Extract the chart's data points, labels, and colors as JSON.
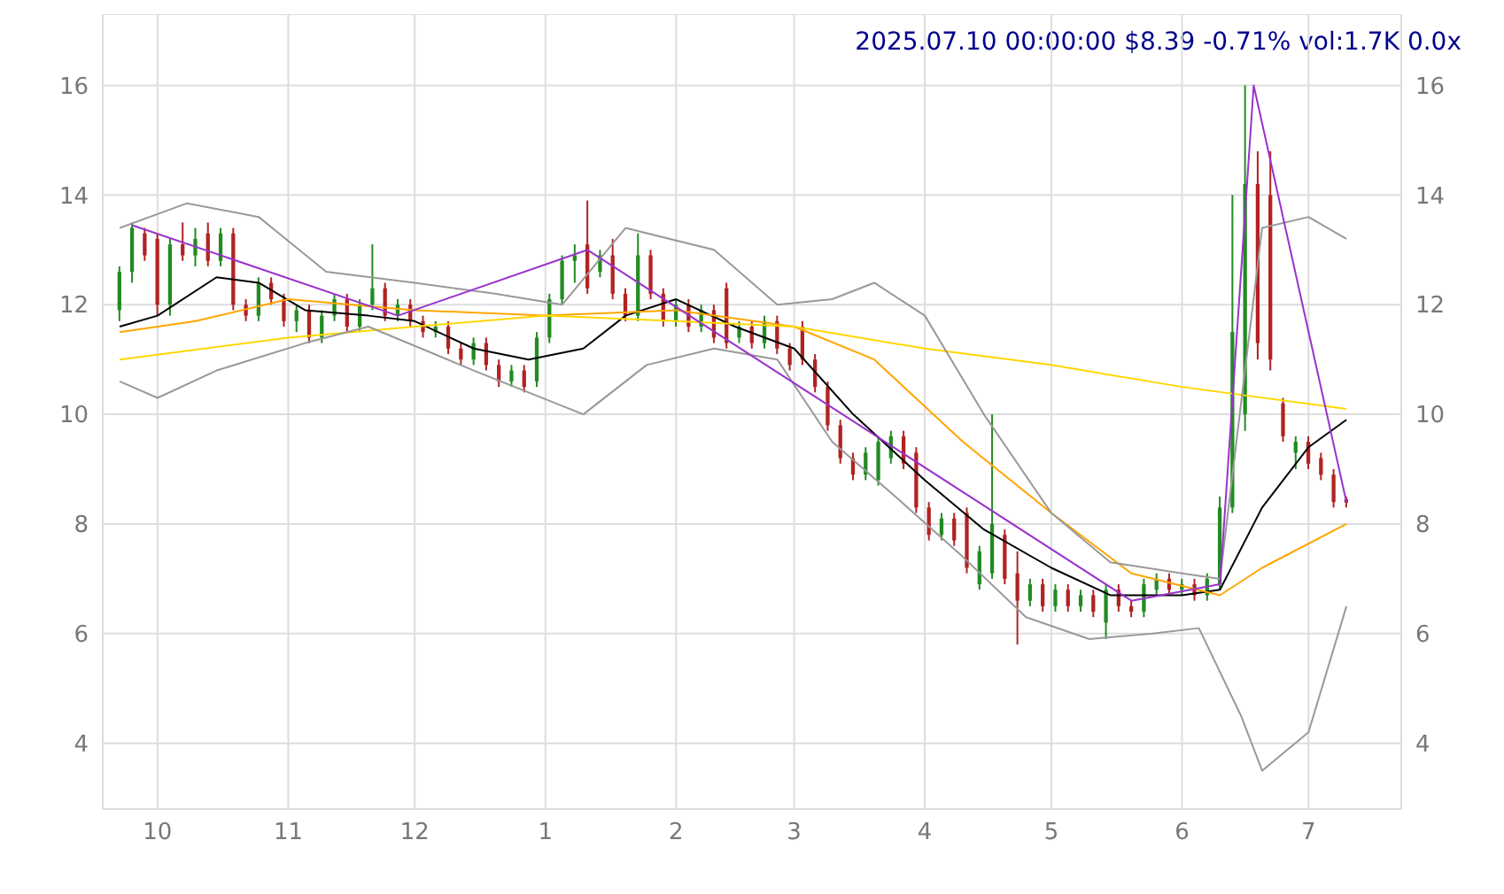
{
  "chart_data": {
    "type": "candlestick",
    "title": "2025.07.10 00:00:00 $8.39 -0.71% vol:1.7K 0.0x",
    "x": [
      "2024-09-22",
      "2024-09-25",
      "2024-09-28",
      "2024-10-01",
      "2024-10-04",
      "2024-10-07",
      "2024-10-10",
      "2024-10-13",
      "2024-10-16",
      "2024-10-19",
      "2024-10-22",
      "2024-10-25",
      "2024-10-28",
      "2024-10-31",
      "2024-11-03",
      "2024-11-06",
      "2024-11-09",
      "2024-11-12",
      "2024-11-15",
      "2024-11-18",
      "2024-11-21",
      "2024-11-24",
      "2024-11-27",
      "2024-11-30",
      "2024-12-03",
      "2024-12-06",
      "2024-12-09",
      "2024-12-12",
      "2024-12-15",
      "2024-12-18",
      "2024-12-21",
      "2024-12-24",
      "2024-12-27",
      "2024-12-30",
      "2025-01-02",
      "2025-01-05",
      "2025-01-08",
      "2025-01-11",
      "2025-01-14",
      "2025-01-17",
      "2025-01-20",
      "2025-01-23",
      "2025-01-26",
      "2025-01-29",
      "2025-02-01",
      "2025-02-04",
      "2025-02-07",
      "2025-02-10",
      "2025-02-13",
      "2025-02-16",
      "2025-02-19",
      "2025-02-22",
      "2025-02-25",
      "2025-02-28",
      "2025-03-03",
      "2025-03-06",
      "2025-03-09",
      "2025-03-12",
      "2025-03-15",
      "2025-03-18",
      "2025-03-21",
      "2025-03-24",
      "2025-03-27",
      "2025-03-30",
      "2025-04-02",
      "2025-04-05",
      "2025-04-08",
      "2025-04-11",
      "2025-04-14",
      "2025-04-17",
      "2025-04-20",
      "2025-04-23",
      "2025-04-26",
      "2025-04-29",
      "2025-05-02",
      "2025-05-05",
      "2025-05-08",
      "2025-05-11",
      "2025-05-14",
      "2025-05-17",
      "2025-05-20",
      "2025-05-23",
      "2025-05-26",
      "2025-05-29",
      "2025-06-01",
      "2025-06-04",
      "2025-06-07",
      "2025-06-10",
      "2025-06-13",
      "2025-06-16",
      "2025-06-19",
      "2025-06-22",
      "2025-06-25",
      "2025-06-28",
      "2025-07-01",
      "2025-07-04",
      "2025-07-07",
      "2025-07-10"
    ],
    "ohlc": [
      [
        11.9,
        12.7,
        11.7,
        12.6
      ],
      [
        12.6,
        13.5,
        12.4,
        13.4
      ],
      [
        13.3,
        13.4,
        12.8,
        12.9
      ],
      [
        13.2,
        13.3,
        11.8,
        12.0
      ],
      [
        12.0,
        13.2,
        11.8,
        13.1
      ],
      [
        13.1,
        13.5,
        12.8,
        12.9
      ],
      [
        12.9,
        13.4,
        12.7,
        13.2
      ],
      [
        13.3,
        13.5,
        12.7,
        12.8
      ],
      [
        12.8,
        13.4,
        12.7,
        13.3
      ],
      [
        13.3,
        13.4,
        11.9,
        12.0
      ],
      [
        12.0,
        12.1,
        11.7,
        11.8
      ],
      [
        11.8,
        12.5,
        11.7,
        12.4
      ],
      [
        12.4,
        12.5,
        12.0,
        12.1
      ],
      [
        12.1,
        12.2,
        11.6,
        11.7
      ],
      [
        11.7,
        12.0,
        11.5,
        11.9
      ],
      [
        11.9,
        12.0,
        11.3,
        11.4
      ],
      [
        11.4,
        11.9,
        11.3,
        11.8
      ],
      [
        11.8,
        12.2,
        11.7,
        12.1
      ],
      [
        12.1,
        12.2,
        11.5,
        11.6
      ],
      [
        11.6,
        12.1,
        11.5,
        12.0
      ],
      [
        12.0,
        13.1,
        11.9,
        12.3
      ],
      [
        12.3,
        12.4,
        11.7,
        11.8
      ],
      [
        11.8,
        12.1,
        11.7,
        12.0
      ],
      [
        12.0,
        12.1,
        11.6,
        11.7
      ],
      [
        11.7,
        11.8,
        11.4,
        11.5
      ],
      [
        11.5,
        11.7,
        11.4,
        11.6
      ],
      [
        11.6,
        11.7,
        11.1,
        11.2
      ],
      [
        11.2,
        11.3,
        10.9,
        11.0
      ],
      [
        11.0,
        11.4,
        10.9,
        11.3
      ],
      [
        11.3,
        11.4,
        10.8,
        10.9
      ],
      [
        10.9,
        11.0,
        10.5,
        10.6
      ],
      [
        10.6,
        10.9,
        10.5,
        10.8
      ],
      [
        10.8,
        10.9,
        10.4,
        10.5
      ],
      [
        10.6,
        11.5,
        10.5,
        11.4
      ],
      [
        11.4,
        12.2,
        11.3,
        12.1
      ],
      [
        12.1,
        12.9,
        12.0,
        12.8
      ],
      [
        12.8,
        13.1,
        12.4,
        12.9
      ],
      [
        13.1,
        13.9,
        12.2,
        12.3
      ],
      [
        12.6,
        13.0,
        12.5,
        12.9
      ],
      [
        12.9,
        13.2,
        12.1,
        12.2
      ],
      [
        12.2,
        12.3,
        11.7,
        11.8
      ],
      [
        11.8,
        13.3,
        11.7,
        12.9
      ],
      [
        12.9,
        13.0,
        12.1,
        12.2
      ],
      [
        12.2,
        12.3,
        11.6,
        11.7
      ],
      [
        11.7,
        12.1,
        11.6,
        12.0
      ],
      [
        12.0,
        12.1,
        11.5,
        11.6
      ],
      [
        11.6,
        12.0,
        11.5,
        11.9
      ],
      [
        11.9,
        12.0,
        11.3,
        11.4
      ],
      [
        12.3,
        12.4,
        11.2,
        11.3
      ],
      [
        11.4,
        11.7,
        11.3,
        11.6
      ],
      [
        11.6,
        11.7,
        11.2,
        11.3
      ],
      [
        11.3,
        11.8,
        11.2,
        11.7
      ],
      [
        11.7,
        11.8,
        11.1,
        11.2
      ],
      [
        11.2,
        11.3,
        10.8,
        10.9
      ],
      [
        11.6,
        11.7,
        10.9,
        11.0
      ],
      [
        11.0,
        11.1,
        10.4,
        10.5
      ],
      [
        10.5,
        10.6,
        9.7,
        9.8
      ],
      [
        9.8,
        9.9,
        9.1,
        9.2
      ],
      [
        9.2,
        9.3,
        8.8,
        8.9
      ],
      [
        8.9,
        9.4,
        8.8,
        9.3
      ],
      [
        8.8,
        9.6,
        8.7,
        9.5
      ],
      [
        9.2,
        9.7,
        9.1,
        9.6
      ],
      [
        9.6,
        9.7,
        9.0,
        9.1
      ],
      [
        9.3,
        9.4,
        8.2,
        8.3
      ],
      [
        8.3,
        8.4,
        7.7,
        7.8
      ],
      [
        7.8,
        8.2,
        7.7,
        8.1
      ],
      [
        8.1,
        8.2,
        7.6,
        7.7
      ],
      [
        8.2,
        8.3,
        7.1,
        7.2
      ],
      [
        6.9,
        7.6,
        6.8,
        7.5
      ],
      [
        7.1,
        10.0,
        7.0,
        8.0
      ],
      [
        7.8,
        7.9,
        6.9,
        7.0
      ],
      [
        7.1,
        7.5,
        5.8,
        6.6
      ],
      [
        6.6,
        7.0,
        6.5,
        6.9
      ],
      [
        6.9,
        7.0,
        6.4,
        6.5
      ],
      [
        6.5,
        6.9,
        6.4,
        6.8
      ],
      [
        6.8,
        6.9,
        6.4,
        6.5
      ],
      [
        6.5,
        6.8,
        6.4,
        6.7
      ],
      [
        6.7,
        6.8,
        6.3,
        6.4
      ],
      [
        6.2,
        6.9,
        5.9,
        6.8
      ],
      [
        6.8,
        6.9,
        6.4,
        6.5
      ],
      [
        6.5,
        6.6,
        6.3,
        6.4
      ],
      [
        6.4,
        7.0,
        6.3,
        6.9
      ],
      [
        6.8,
        7.1,
        6.7,
        7.0
      ],
      [
        7.0,
        7.1,
        6.7,
        6.8
      ],
      [
        6.8,
        7.0,
        6.7,
        6.9
      ],
      [
        6.9,
        7.0,
        6.6,
        6.7
      ],
      [
        6.7,
        7.1,
        6.6,
        7.0
      ],
      [
        6.9,
        8.5,
        6.8,
        8.3
      ],
      [
        8.3,
        14.0,
        8.2,
        11.5
      ],
      [
        10.0,
        16.0,
        9.7,
        14.2
      ],
      [
        14.2,
        14.8,
        11.0,
        11.3
      ],
      [
        14.0,
        14.8,
        10.8,
        11.0
      ],
      [
        10.2,
        10.3,
        9.5,
        9.6
      ],
      [
        9.3,
        9.6,
        9.0,
        9.5
      ],
      [
        9.5,
        9.6,
        9.0,
        9.1
      ],
      [
        9.2,
        9.3,
        8.8,
        8.9
      ],
      [
        8.9,
        9.0,
        8.3,
        8.4
      ],
      [
        8.45,
        8.5,
        8.3,
        8.39
      ]
    ],
    "series": [
      {
        "type": "line",
        "color": "#000000",
        "x": [
          "2024-09-22",
          "2024-10-01",
          "2024-10-15",
          "2024-10-25",
          "2024-11-05",
          "2024-11-20",
          "2024-12-01",
          "2024-12-15",
          "2024-12-28",
          "2025-01-10",
          "2025-01-20",
          "2025-02-01",
          "2025-02-15",
          "2025-03-01",
          "2025-03-15",
          "2025-04-01",
          "2025-04-15",
          "2025-05-01",
          "2025-05-15",
          "2025-06-01",
          "2025-06-10",
          "2025-06-20",
          "2025-07-01",
          "2025-07-10"
        ],
        "values": [
          11.6,
          11.8,
          12.5,
          12.4,
          11.9,
          11.8,
          11.7,
          11.2,
          11.0,
          11.2,
          11.8,
          12.1,
          11.6,
          11.2,
          10.0,
          8.8,
          7.9,
          7.2,
          6.7,
          6.7,
          6.8,
          8.3,
          9.4,
          9.9
        ]
      },
      {
        "type": "line",
        "color": "#ffa500",
        "x": [
          "2024-09-22",
          "2024-10-10",
          "2024-11-01",
          "2024-12-01",
          "2025-01-01",
          "2025-02-01",
          "2025-03-01",
          "2025-03-20",
          "2025-04-10",
          "2025-05-01",
          "2025-05-20",
          "2025-06-10",
          "2025-06-20",
          "2025-07-10"
        ],
        "values": [
          11.5,
          11.7,
          12.1,
          11.9,
          11.8,
          11.9,
          11.6,
          11.0,
          9.5,
          8.2,
          7.1,
          6.7,
          7.2,
          8.0
        ]
      },
      {
        "type": "line",
        "color": "#ffd700",
        "x": [
          "2024-09-22",
          "2024-11-01",
          "2024-12-01",
          "2025-01-01",
          "2025-02-01",
          "2025-03-01",
          "2025-04-01",
          "2025-05-01",
          "2025-06-01",
          "2025-07-10"
        ],
        "values": [
          11.0,
          11.4,
          11.6,
          11.8,
          11.7,
          11.6,
          11.2,
          10.9,
          10.5,
          10.1
        ]
      },
      {
        "type": "line",
        "color": "#999999",
        "x": [
          "2024-09-22",
          "2024-10-08",
          "2024-10-25",
          "2024-11-10",
          "2024-12-01",
          "2024-12-20",
          "2025-01-05",
          "2025-01-20",
          "2025-02-10",
          "2025-02-25",
          "2025-03-10",
          "2025-03-20",
          "2025-04-01",
          "2025-04-15",
          "2025-05-01",
          "2025-05-15",
          "2025-06-01",
          "2025-06-10",
          "2025-06-20",
          "2025-07-01",
          "2025-07-10"
        ],
        "values": [
          13.4,
          13.85,
          13.6,
          12.6,
          12.4,
          12.2,
          12.0,
          13.4,
          13.0,
          12.0,
          12.1,
          12.4,
          11.8,
          10.0,
          8.2,
          7.3,
          7.1,
          7.0,
          13.4,
          13.6,
          13.2
        ]
      },
      {
        "type": "line",
        "color": "#999999",
        "x": [
          "2024-09-22",
          "2024-10-01",
          "2024-10-15",
          "2024-11-05",
          "2024-11-20",
          "2024-12-15",
          "2024-12-28",
          "2025-01-10",
          "2025-01-25",
          "2025-02-10",
          "2025-02-25",
          "2025-03-10",
          "2025-03-25",
          "2025-04-10",
          "2025-04-25",
          "2025-05-10",
          "2025-05-25",
          "2025-06-05",
          "2025-06-15",
          "2025-06-20",
          "2025-07-01",
          "2025-07-10"
        ],
        "values": [
          10.6,
          10.3,
          10.8,
          11.3,
          11.6,
          10.8,
          10.4,
          10.0,
          10.9,
          11.2,
          11.0,
          9.5,
          8.5,
          7.4,
          6.3,
          5.9,
          6.0,
          6.1,
          4.5,
          3.5,
          4.2,
          6.5
        ]
      },
      {
        "type": "line",
        "color": "#9932cc",
        "x": [
          "2024-09-25",
          "2024-11-27",
          "2025-01-11",
          "2025-05-20",
          "2025-06-10",
          "2025-06-18",
          "2025-07-10"
        ],
        "values": [
          13.45,
          11.8,
          13.0,
          6.6,
          6.9,
          16.0,
          8.4
        ]
      }
    ],
    "xlim": [
      "2024-09-18",
      "2025-07-23"
    ],
    "xticks": [
      {
        "value": "2024-10-01",
        "label": "10"
      },
      {
        "value": "2024-11-01",
        "label": "11"
      },
      {
        "value": "2024-12-01",
        "label": "12"
      },
      {
        "value": "2025-01-01",
        "label": "1"
      },
      {
        "value": "2025-02-01",
        "label": "2"
      },
      {
        "value": "2025-03-01",
        "label": "3"
      },
      {
        "value": "2025-04-01",
        "label": "4"
      },
      {
        "value": "2025-05-01",
        "label": "5"
      },
      {
        "value": "2025-06-01",
        "label": "6"
      },
      {
        "value": "2025-07-01",
        "label": "7"
      }
    ],
    "ylim": [
      2.8,
      17.3
    ],
    "yticks": [
      4,
      6,
      8,
      10,
      12,
      14,
      16
    ],
    "y2lim": [
      2.8,
      17.3
    ],
    "y2ticks": [
      4,
      6,
      8,
      10,
      12,
      14,
      16
    ],
    "grid": true
  }
}
